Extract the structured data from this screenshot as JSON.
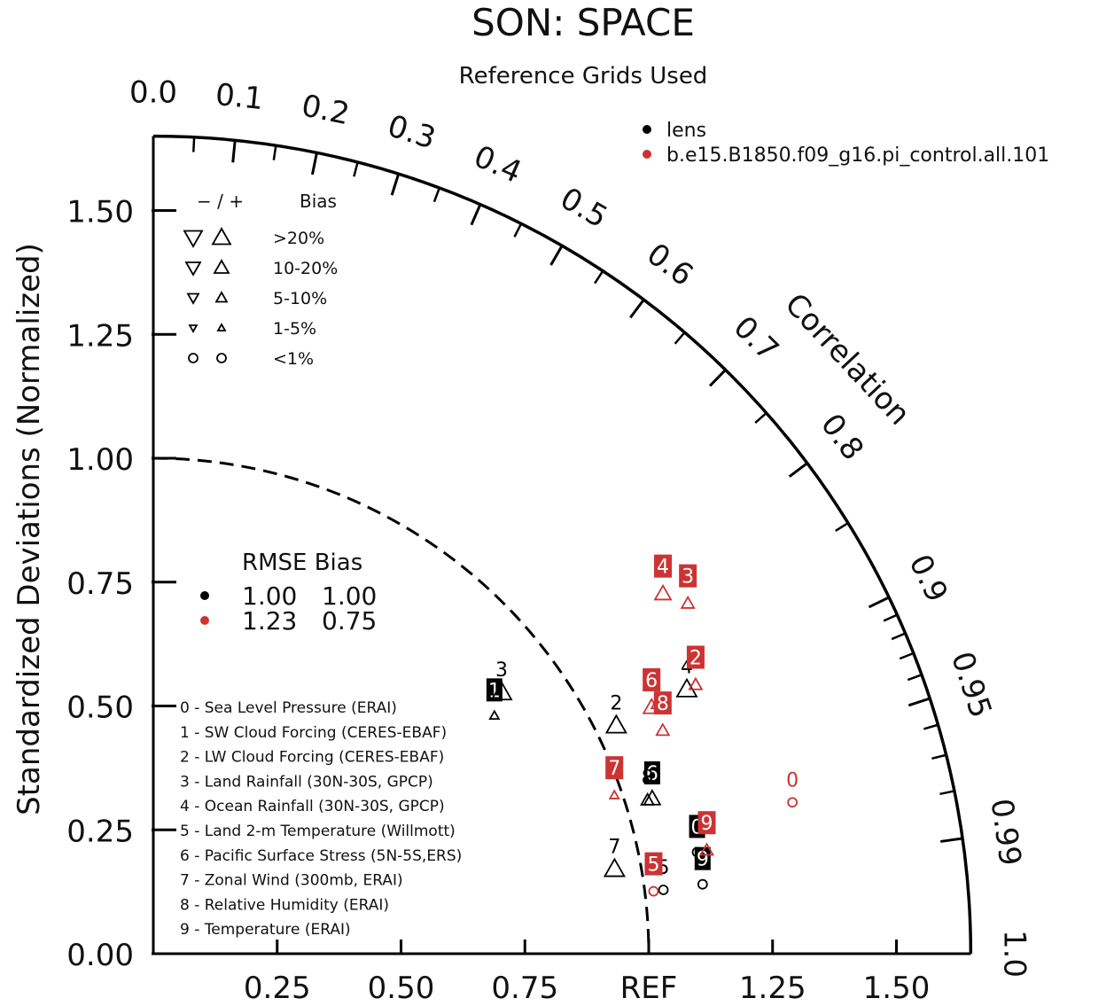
{
  "title": "SON: SPACE",
  "subtitle": "Reference Grids Used",
  "ylabel": "Standardized Deviations (Normalized)",
  "corr_label": "Correlation",
  "ref_label": "REF",
  "colors": {
    "lens": "#000000",
    "piControl": "#cc3333"
  },
  "chart_data": {
    "type": "scatter",
    "plot_kind": "taylor_diagram",
    "x_ticks": [
      "0.25",
      "0.50",
      "0.75",
      "REF",
      "1.25",
      "1.50"
    ],
    "y_ticks": [
      "0.00",
      "0.25",
      "0.50",
      "0.75",
      "1.00",
      "1.25",
      "1.50"
    ],
    "corr_ticks": [
      "0.0",
      "0.1",
      "0.2",
      "0.3",
      "0.4",
      "0.5",
      "0.6",
      "0.7",
      "0.8",
      "0.9",
      "0.95",
      "0.99",
      "1.0"
    ],
    "stddev_range": [
      0,
      1.65
    ],
    "reference_arc_stddev": 1.0,
    "series": [
      {
        "name": "lens",
        "color": "#000000",
        "rmse": "1.00",
        "bias": "1.00",
        "points": [
          {
            "id": "0",
            "corr": 0.98,
            "std": 1.12,
            "bias": "<1%"
          },
          {
            "id": "1",
            "corr": 0.81,
            "std": 0.85,
            "bias": "1-5%"
          },
          {
            "id": "2",
            "corr": 0.89,
            "std": 1.05,
            "bias": ">20%"
          },
          {
            "id": "3",
            "corr": 0.79,
            "std": 0.89,
            "bias": ">20%"
          },
          {
            "id": "4",
            "corr": 0.89,
            "std": 1.21,
            "bias": ">20%"
          },
          {
            "id": "5",
            "corr": 0.99,
            "std": 1.04,
            "bias": "<1%"
          },
          {
            "id": "6",
            "corr": 0.95,
            "std": 1.06,
            "bias": "10-20%"
          },
          {
            "id": "7",
            "corr": 0.98,
            "std": 0.95,
            "bias": ">20%"
          },
          {
            "id": "8",
            "corr": 0.95,
            "std": 1.05,
            "bias": "5-10%"
          },
          {
            "id": "9",
            "corr": 0.99,
            "std": 1.12,
            "bias": "<1%"
          }
        ]
      },
      {
        "name": "b.e15.B1850.f09_g16.pi_control.all.101",
        "color": "#cc3333",
        "rmse": "1.23",
        "bias": "0.75",
        "points": [
          {
            "id": "0",
            "corr": 0.97,
            "std": 1.33,
            "bias": "<1%"
          },
          {
            "id": "1",
            "corr": 0.89,
            "std": 1.14,
            "bias": "1-5%"
          },
          {
            "id": "2",
            "corr": 0.89,
            "std": 1.23,
            "bias": "5-10%"
          },
          {
            "id": "3",
            "corr": 0.83,
            "std": 1.3,
            "bias": "5-10%"
          },
          {
            "id": "4",
            "corr": 0.81,
            "std": 1.27,
            "bias": "10-20%"
          },
          {
            "id": "5",
            "corr": 0.99,
            "std": 1.02,
            "bias": "<1%"
          },
          {
            "id": "6",
            "corr": 0.89,
            "std": 1.13,
            "bias": "10-20%"
          },
          {
            "id": "7",
            "corr": 0.94,
            "std": 0.99,
            "bias": "1-5%"
          },
          {
            "id": "8",
            "corr": 0.91,
            "std": 1.13,
            "bias": "5-10%"
          },
          {
            "id": "9",
            "corr": 0.98,
            "std": 1.14,
            "bias": "5-10%"
          }
        ]
      }
    ],
    "bias_legend": {
      "header_sign": "−  /  +",
      "header_label": "Bias",
      "rows": [
        ">20%",
        "10-20%",
        "5-10%",
        "1-5%",
        "<1%"
      ]
    },
    "rmse_bias_legend": {
      "header": "RMSE Bias"
    },
    "variables": [
      "0 - Sea Level Pressure (ERAI)",
      "1 - SW Cloud Forcing (CERES-EBAF)",
      "2 - LW Cloud Forcing (CERES-EBAF)",
      "3 - Land Rainfall (30N-30S, GPCP)",
      "4 - Ocean Rainfall (30N-30S, GPCP)",
      "5 - Land 2-m Temperature (Willmott)",
      "6 - Pacific Surface Stress (5N-5S,ERS)",
      "7 - Zonal Wind (300mb, ERAI)",
      "8 - Relative Humidity (ERAI)",
      "9 - Temperature (ERAI)"
    ]
  }
}
